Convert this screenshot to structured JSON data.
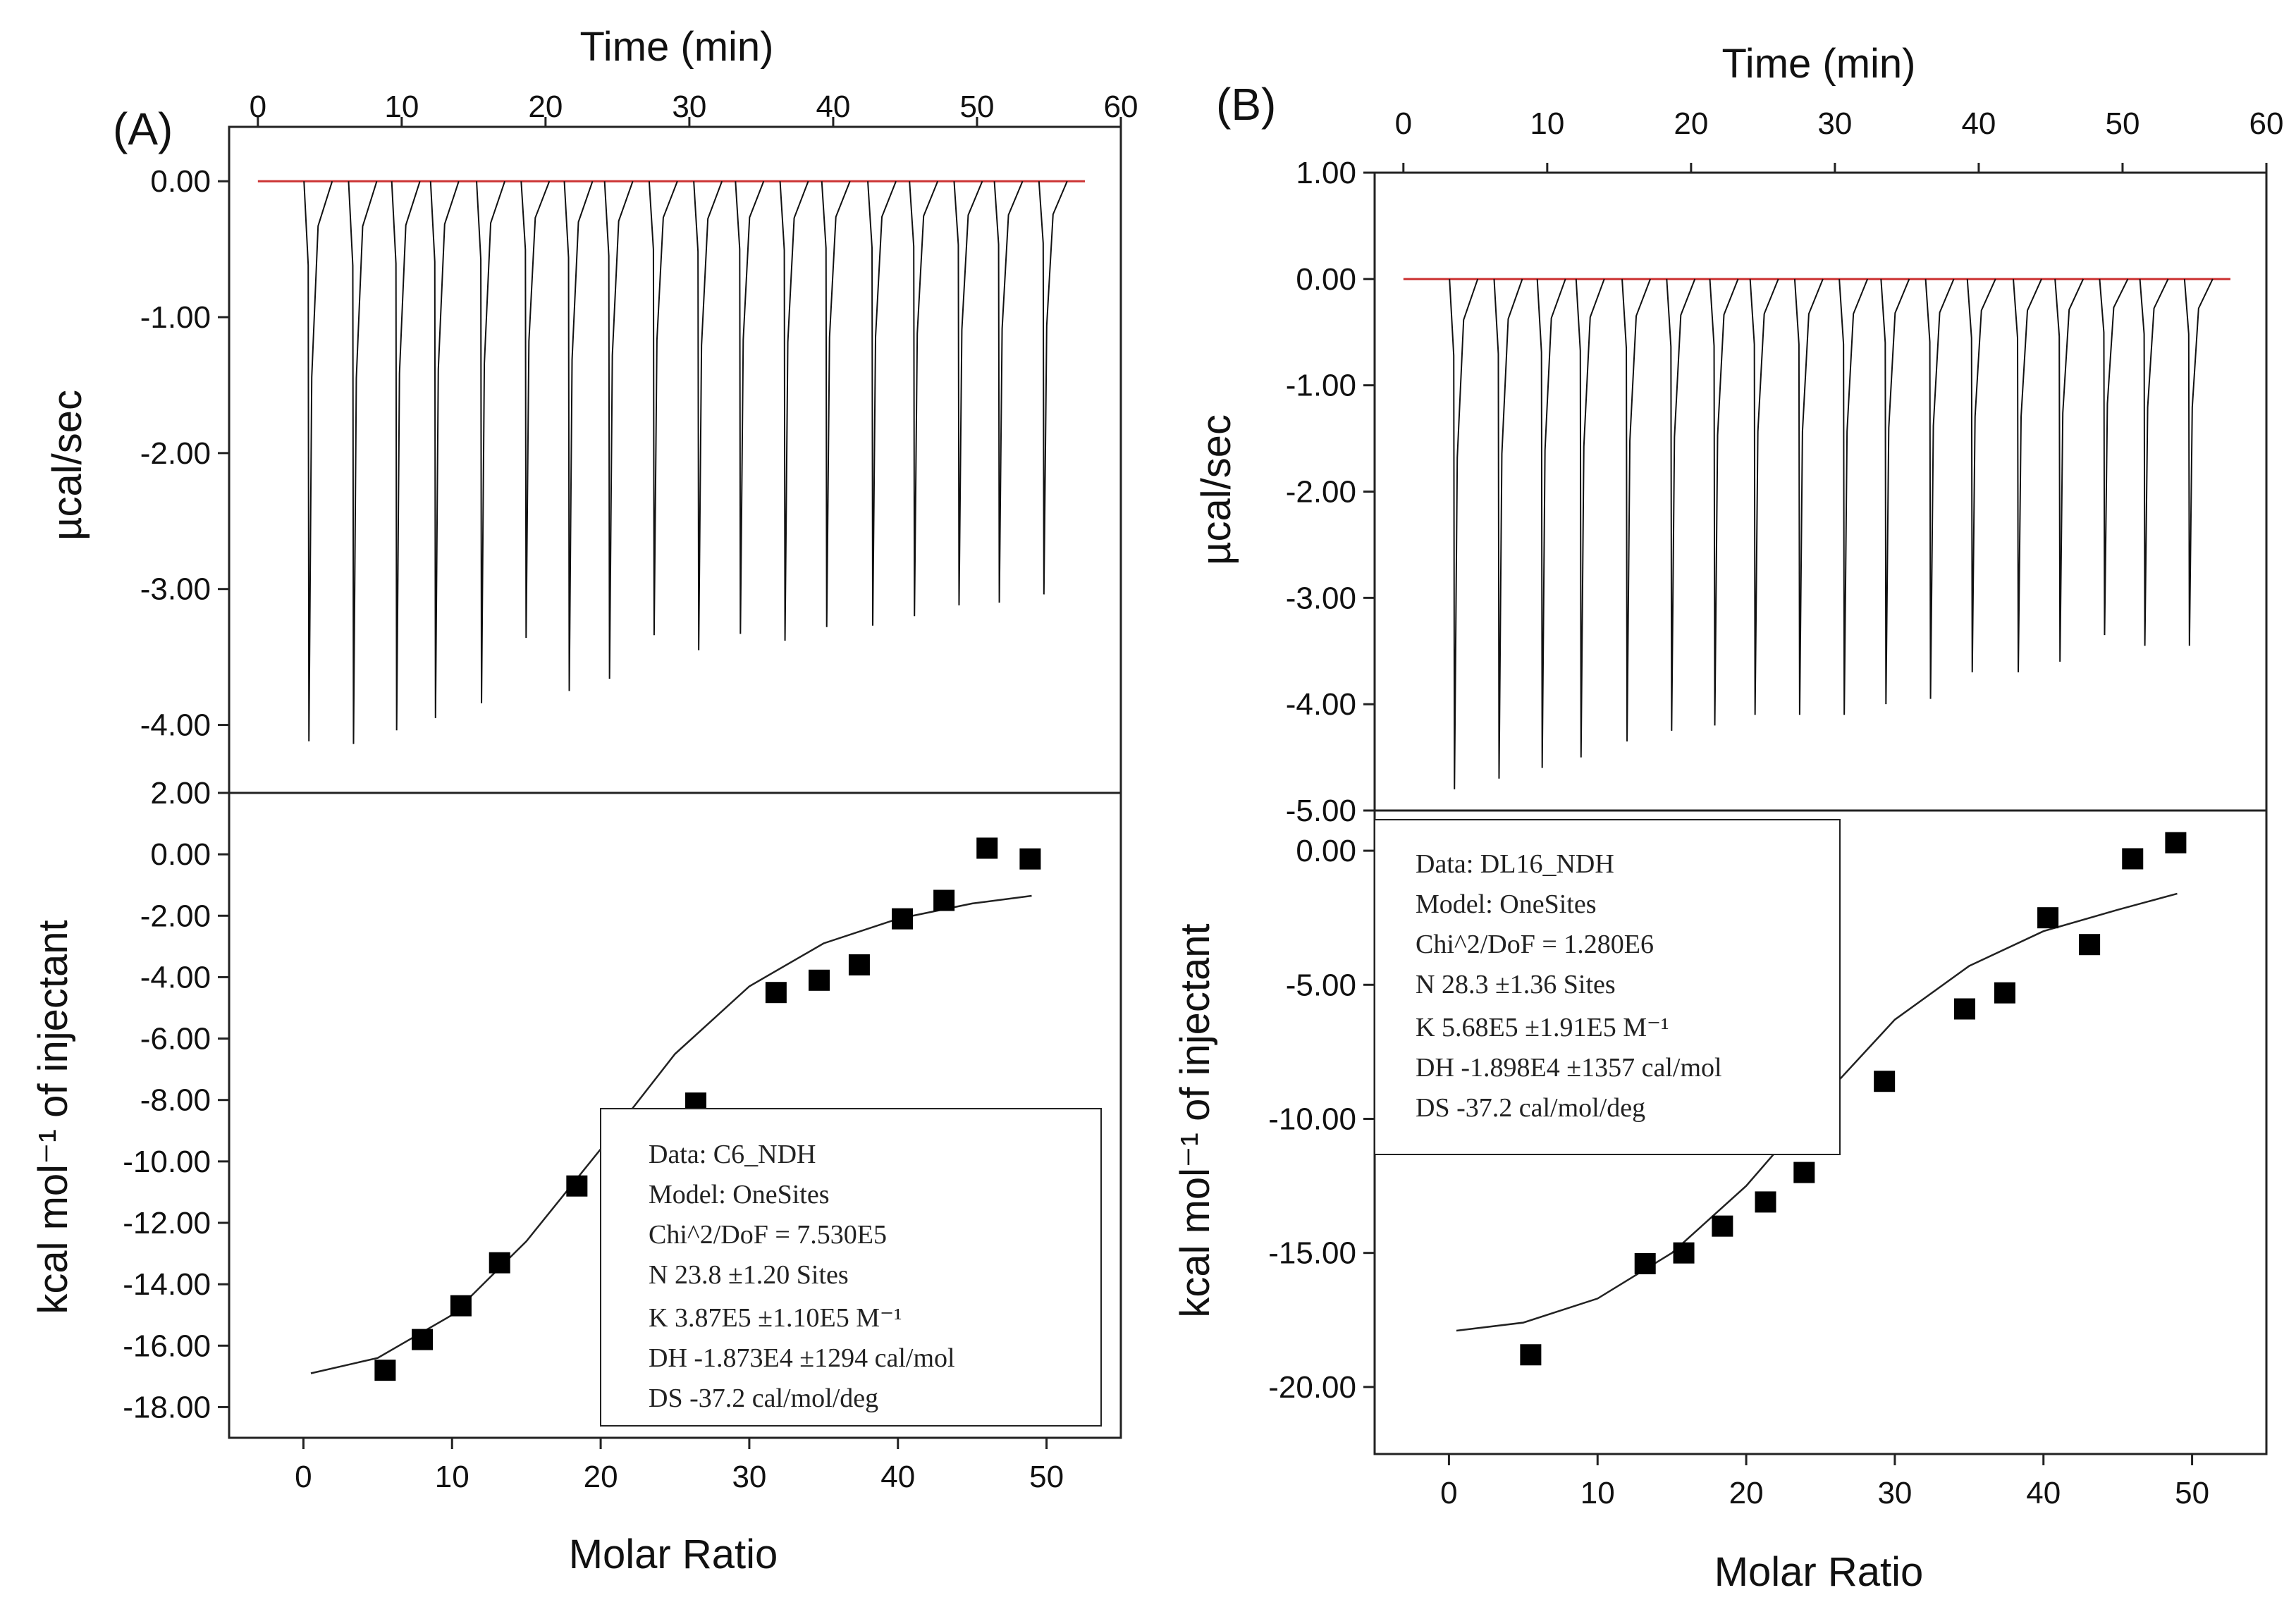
{
  "chart_data": [
    {
      "panel": "(A)",
      "type": "line",
      "top_axis": {
        "title": "Time (min)",
        "range": [
          -2,
          60
        ],
        "ticks": [
          0,
          10,
          20,
          30,
          40,
          50,
          60
        ]
      },
      "raw_plot": {
        "ylabel": "µcal/sec",
        "ylim": [
          -4.5,
          0.4
        ],
        "yticks": [
          {
            "v": 0,
            "label": "0.00"
          },
          {
            "v": -1,
            "label": "-1.00"
          },
          {
            "v": -2,
            "label": "-2.00"
          },
          {
            "v": -3,
            "label": "-3.00"
          },
          {
            "v": -4,
            "label": "-4.00"
          }
        ],
        "baseline_color": "#cc3333",
        "injection_times": [
          3.5,
          6.6,
          9.6,
          12.3,
          15.5,
          18.6,
          21.6,
          24.4,
          27.5,
          30.6,
          33.5,
          36.6,
          39.5,
          42.7,
          45.6,
          48.7,
          51.5,
          54.6
        ],
        "peak_depths": [
          -4.12,
          -4.14,
          -4.04,
          -3.95,
          -3.84,
          -3.36,
          -3.75,
          -3.66,
          -3.34,
          -3.45,
          -3.33,
          -3.38,
          -3.28,
          -3.27,
          -3.2,
          -3.12,
          -3.1,
          -3.04
        ]
      },
      "fit_plot": {
        "ylabel": "kcal mol⁻¹ of injectant",
        "xlabel": "Molar Ratio",
        "xlim": [
          -5,
          55
        ],
        "ylim": [
          -19,
          2
        ],
        "xticks": [
          0,
          10,
          20,
          30,
          40,
          50
        ],
        "yticks": [
          {
            "v": 2,
            "label": "2.00"
          },
          {
            "v": 0,
            "label": "0.00"
          },
          {
            "v": -2,
            "label": "-2.00"
          },
          {
            "v": -4,
            "label": "-4.00"
          },
          {
            "v": -6,
            "label": "-6.00"
          },
          {
            "v": -8,
            "label": "-8.00"
          },
          {
            "v": -10,
            "label": "-10.00"
          },
          {
            "v": -12,
            "label": "-12.00"
          },
          {
            "v": -14,
            "label": "-14.00"
          },
          {
            "v": -16,
            "label": "-16.00"
          },
          {
            "v": -18,
            "label": "-18.00"
          }
        ],
        "points": {
          "x": [
            5.5,
            8.0,
            10.6,
            13.2,
            18.4,
            21.3,
            26.4,
            31.8,
            34.7,
            37.4,
            40.3,
            43.1,
            46.0,
            48.9
          ],
          "y": [
            -16.8,
            -15.8,
            -14.7,
            -13.3,
            -10.8,
            -9.5,
            -8.1,
            -4.5,
            -4.1,
            -3.6,
            -2.1,
            -1.5,
            0.2,
            -0.15
          ]
        },
        "fit": {
          "x": [
            0.5,
            5,
            10,
            15,
            20,
            25,
            30,
            35,
            40,
            45,
            49
          ],
          "y": [
            -16.9,
            -16.4,
            -15.0,
            -12.6,
            -9.6,
            -6.5,
            -4.3,
            -2.9,
            -2.1,
            -1.6,
            -1.35
          ]
        }
      },
      "stats": {
        "lines": [
          "Data: C6_NDH",
          "Model: OneSites",
          "Chi^2/DoF = 7.530E5",
          "N      23.8    ±1.20 Sites",
          "K      3.87E5          ±1.10E5 M⁻¹",
          "DH    -1.873E4     ±1294 cal/mol",
          "DS    -37.2 cal/mol/deg"
        ]
      }
    },
    {
      "panel": "(B)",
      "type": "line",
      "top_axis": {
        "title": "Time (min)",
        "range": [
          -2,
          60
        ],
        "ticks": [
          0,
          10,
          20,
          30,
          40,
          50,
          60
        ]
      },
      "raw_plot": {
        "ylabel": "µcal/sec",
        "ylim": [
          -5.0,
          1.0
        ],
        "yticks": [
          {
            "v": 1,
            "label": "1.00"
          },
          {
            "v": 0,
            "label": "0.00"
          },
          {
            "v": -1,
            "label": "-1.00"
          },
          {
            "v": -2,
            "label": "-2.00"
          },
          {
            "v": -3,
            "label": "-3.00"
          },
          {
            "v": -4,
            "label": "-4.00"
          },
          {
            "v": -5,
            "label": "-5.00"
          }
        ],
        "baseline_color": "#cc3333",
        "injection_times": [
          3.5,
          6.6,
          9.6,
          12.3,
          15.5,
          18.6,
          21.6,
          24.4,
          27.5,
          30.6,
          33.5,
          36.6,
          39.5,
          42.7,
          45.6,
          48.7,
          51.5,
          54.6
        ],
        "peak_depths": [
          -4.8,
          -4.7,
          -4.6,
          -4.5,
          -4.35,
          -4.25,
          -4.2,
          -4.1,
          -4.1,
          -4.1,
          -4.0,
          -3.95,
          -3.7,
          -3.7,
          -3.6,
          -3.35,
          -3.45,
          -3.45
        ]
      },
      "fit_plot": {
        "ylabel": "kcal mol⁻¹ of injectant",
        "xlabel": "Molar Ratio",
        "xlim": [
          -5,
          55
        ],
        "ylim": [
          -22.5,
          1.5
        ],
        "xticks": [
          0,
          10,
          20,
          30,
          40,
          50
        ],
        "yticks": [
          {
            "v": 0,
            "label": "0.00"
          },
          {
            "v": -5,
            "label": "-5.00"
          },
          {
            "v": -10,
            "label": "-10.00"
          },
          {
            "v": -15,
            "label": "-15.00"
          },
          {
            "v": -20,
            "label": "-20.00"
          }
        ],
        "points": {
          "x": [
            5.5,
            13.2,
            15.8,
            18.4,
            21.3,
            23.9,
            29.3,
            34.7,
            37.4,
            40.3,
            43.1,
            46.0,
            48.9
          ],
          "y": [
            -18.8,
            -15.4,
            -15.0,
            -14.0,
            -13.1,
            -12.0,
            -8.6,
            -5.9,
            -5.3,
            -2.5,
            -3.5,
            -0.3,
            0.3
          ]
        },
        "fit": {
          "x": [
            0.5,
            5,
            10,
            15,
            20,
            25,
            30,
            35,
            40,
            45,
            49
          ],
          "y": [
            -17.9,
            -17.6,
            -16.7,
            -15.0,
            -12.5,
            -9.3,
            -6.3,
            -4.3,
            -3.0,
            -2.2,
            -1.6
          ]
        }
      },
      "stats": {
        "lines": [
          "Data: DL16_NDH",
          "Model: OneSites",
          "Chi^2/DoF = 1.280E6",
          "N      28.3  ±1.36 Sites",
          "K      5.68E5      ±1.91E5 M⁻¹",
          "DH   -1.898E4  ±1357 cal/mol",
          "DS   -37.2 cal/mol/deg"
        ]
      }
    }
  ]
}
